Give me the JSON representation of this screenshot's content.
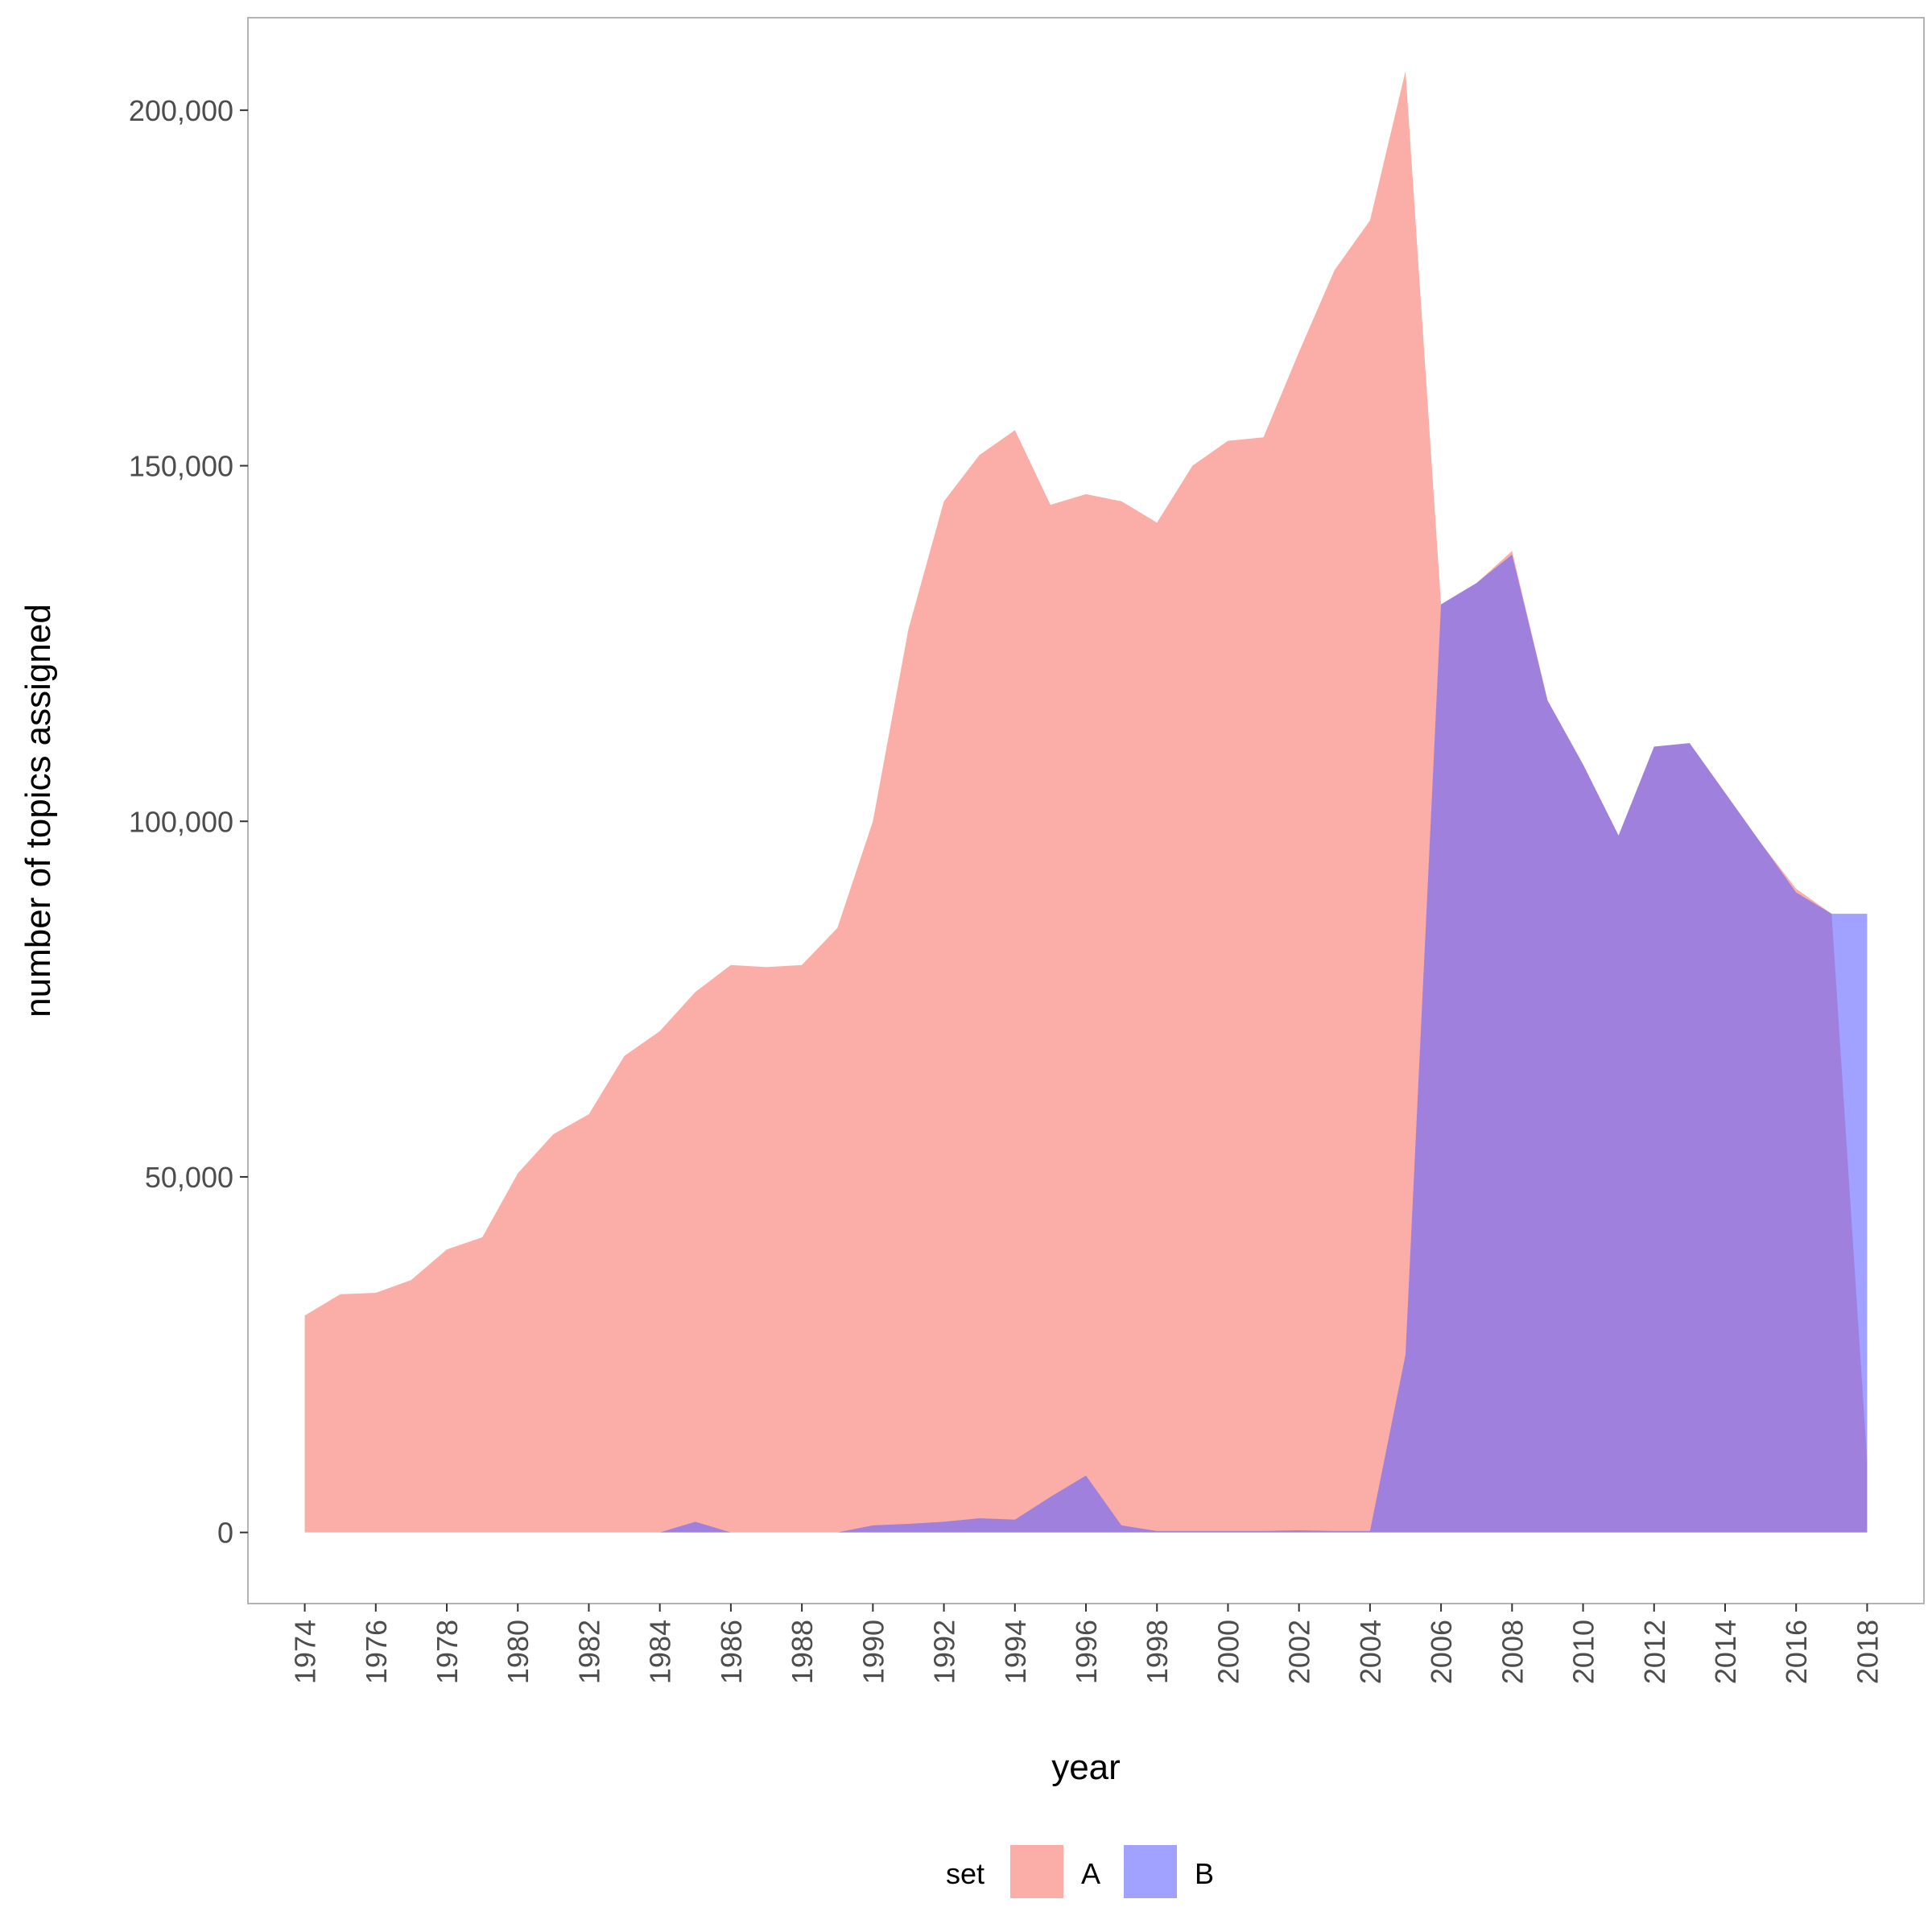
{
  "chart_data": {
    "type": "area",
    "title": "",
    "xlabel": "year",
    "ylabel": "number of topics assigned",
    "xlim": [
      1972.4,
      2019.6
    ],
    "ylim": [
      -10000,
      213000
    ],
    "x_ticks": [
      "1974",
      "1976",
      "1978",
      "1980",
      "1982",
      "1984",
      "1986",
      "1988",
      "1990",
      "1992",
      "1994",
      "1996",
      "1998",
      "2000",
      "2002",
      "2004",
      "2006",
      "2008",
      "2010",
      "2012",
      "2014",
      "2016",
      "2018"
    ],
    "y_ticks": [
      {
        "value": 0,
        "label": "0"
      },
      {
        "value": 50000,
        "label": "50,000"
      },
      {
        "value": 100000,
        "label": "100,000"
      },
      {
        "value": 150000,
        "label": "150,000"
      },
      {
        "value": 200000,
        "label": "200,000"
      }
    ],
    "grid": false,
    "legend": {
      "title": "set",
      "position": "bottom"
    },
    "colors": {
      "A": "#f8766d",
      "B": "#6263ff"
    },
    "fill_opacity": 0.6,
    "x": [
      1974,
      1975,
      1976,
      1977,
      1978,
      1979,
      1980,
      1981,
      1982,
      1983,
      1984,
      1985,
      1986,
      1987,
      1988,
      1989,
      1990,
      1991,
      1992,
      1993,
      1994,
      1995,
      1996,
      1997,
      1998,
      1999,
      2000,
      2001,
      2002,
      2003,
      2004,
      2005,
      2006,
      2007,
      2008,
      2009,
      2010,
      2011,
      2012,
      2013,
      2014,
      2015,
      2016,
      2017,
      2018
    ],
    "series": [
      {
        "name": "A",
        "values": [
          30500,
          33500,
          33700,
          35500,
          39800,
          41500,
          50500,
          56000,
          58800,
          67000,
          70500,
          76000,
          79800,
          79500,
          79800,
          85000,
          100000,
          127000,
          145000,
          151500,
          155000,
          144500,
          146000,
          145000,
          142000,
          150000,
          153500,
          154000,
          166000,
          177500,
          184500,
          205500,
          130500,
          133500,
          138000,
          117000,
          108000,
          98000,
          110500,
          111000,
          104000,
          97000,
          90500,
          87000,
          10000
        ]
      },
      {
        "name": "B",
        "values": [
          0,
          0,
          0,
          0,
          0,
          0,
          0,
          0,
          0,
          0,
          0,
          1500,
          0,
          0,
          0,
          0,
          1000,
          1200,
          1500,
          2000,
          1800,
          5000,
          8000,
          1000,
          200,
          200,
          200,
          200,
          300,
          200,
          200,
          25000,
          130500,
          133500,
          137500,
          117000,
          108000,
          98000,
          110500,
          111000,
          104000,
          97000,
          90000,
          87000,
          87000
        ]
      }
    ]
  }
}
